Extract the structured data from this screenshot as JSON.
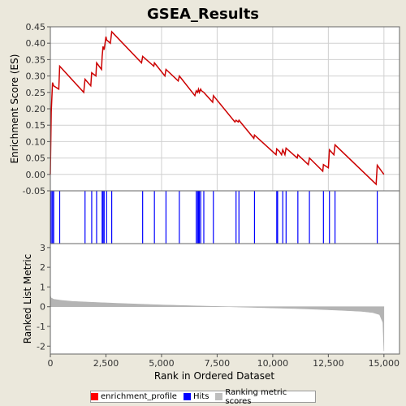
{
  "chart_data": {
    "type": "line",
    "title": "GSEA_Results",
    "xlabel": "Rank in Ordered Dataset",
    "xlim": [
      0,
      15700
    ],
    "x_ticks": [
      0,
      2500,
      5000,
      7500,
      10000,
      12500,
      15000
    ],
    "x_tick_labels": [
      "0",
      "2,500",
      "5,000",
      "7,500",
      "10,000",
      "12,500",
      "15,000"
    ],
    "panels": {
      "es": {
        "ylabel": "Enrichment Score (ES)",
        "ylim": [
          -0.05,
          0.45
        ],
        "y_ticks": [
          -0.05,
          0.0,
          0.05,
          0.1,
          0.15,
          0.2,
          0.25,
          0.3,
          0.35,
          0.4,
          0.45
        ],
        "y_tick_labels": [
          "-0.05",
          "0.00",
          "0.05",
          "0.10",
          "0.15",
          "0.20",
          "0.25",
          "0.30",
          "0.35",
          "0.40",
          "0.45"
        ],
        "grid": true,
        "line_color": "#cc0000",
        "x": [
          0,
          40,
          100,
          150,
          380,
          420,
          1500,
          1560,
          1820,
          1860,
          2050,
          2080,
          2300,
          2330,
          2370,
          2420,
          2500,
          2530,
          2700,
          2760,
          4100,
          4150,
          4650,
          4680,
          5150,
          5200,
          5750,
          5800,
          6500,
          6560,
          6620,
          6660,
          6700,
          6760,
          6800,
          6900,
          7300,
          7330,
          8300,
          8350,
          8450,
          8480,
          9150,
          9180,
          10150,
          10180,
          10300,
          10400,
          10450,
          10550,
          10600,
          11100,
          11130,
          11600,
          11650,
          12250,
          12280,
          12500,
          12550,
          12750,
          12800,
          14650,
          14700,
          15000
        ],
        "y": [
          0.0,
          0.19,
          0.28,
          0.27,
          0.26,
          0.33,
          0.25,
          0.29,
          0.27,
          0.31,
          0.3,
          0.34,
          0.32,
          0.36,
          0.39,
          0.38,
          0.42,
          0.41,
          0.4,
          0.435,
          0.34,
          0.36,
          0.33,
          0.34,
          0.3,
          0.32,
          0.285,
          0.3,
          0.24,
          0.255,
          0.25,
          0.26,
          0.25,
          0.26,
          0.255,
          0.25,
          0.22,
          0.24,
          0.16,
          0.165,
          0.16,
          0.165,
          0.11,
          0.12,
          0.06,
          0.078,
          0.07,
          0.06,
          0.075,
          0.06,
          0.08,
          0.05,
          0.06,
          0.03,
          0.05,
          0.01,
          0.03,
          0.02,
          0.075,
          0.06,
          0.09,
          -0.03,
          0.028,
          0.0
        ]
      },
      "hits": {
        "color": "#0000ff",
        "positions": [
          40,
          100,
          150,
          420,
          1560,
          1860,
          2080,
          2330,
          2370,
          2420,
          2530,
          2760,
          4150,
          4680,
          5200,
          5800,
          6560,
          6620,
          6660,
          6700,
          6760,
          6900,
          7330,
          8350,
          8480,
          9180,
          10180,
          10220,
          10450,
          10600,
          11130,
          11650,
          12280,
          12550,
          12800,
          14700
        ]
      },
      "metric": {
        "ylabel": "Ranked List Metric",
        "ylim": [
          -2.4,
          3.2
        ],
        "y_ticks": [
          -2,
          -1,
          0,
          1,
          2,
          3
        ],
        "y_tick_labels": [
          "-2",
          "-1",
          "0",
          "1",
          "2",
          "3"
        ],
        "fill_color": "#b4b4b4",
        "x": [
          0,
          30,
          150,
          500,
          1000,
          2000,
          3000,
          4000,
          5000,
          6000,
          7000,
          8000,
          9000,
          10000,
          11000,
          12000,
          13000,
          14000,
          14500,
          14800,
          14950,
          15000
        ],
        "y": [
          0.6,
          0.45,
          0.38,
          0.32,
          0.27,
          0.22,
          0.17,
          0.13,
          0.09,
          0.06,
          0.03,
          0.0,
          -0.03,
          -0.06,
          -0.09,
          -0.13,
          -0.18,
          -0.24,
          -0.3,
          -0.4,
          -0.8,
          -2.25
        ]
      }
    },
    "legend": {
      "placement": "bottom",
      "entries": [
        {
          "label": "enrichment_profile",
          "color": "#ff0000"
        },
        {
          "label": "Hits",
          "color": "#0000ff"
        },
        {
          "label": "Ranking metric scores",
          "color": "#bebebe"
        }
      ]
    }
  }
}
